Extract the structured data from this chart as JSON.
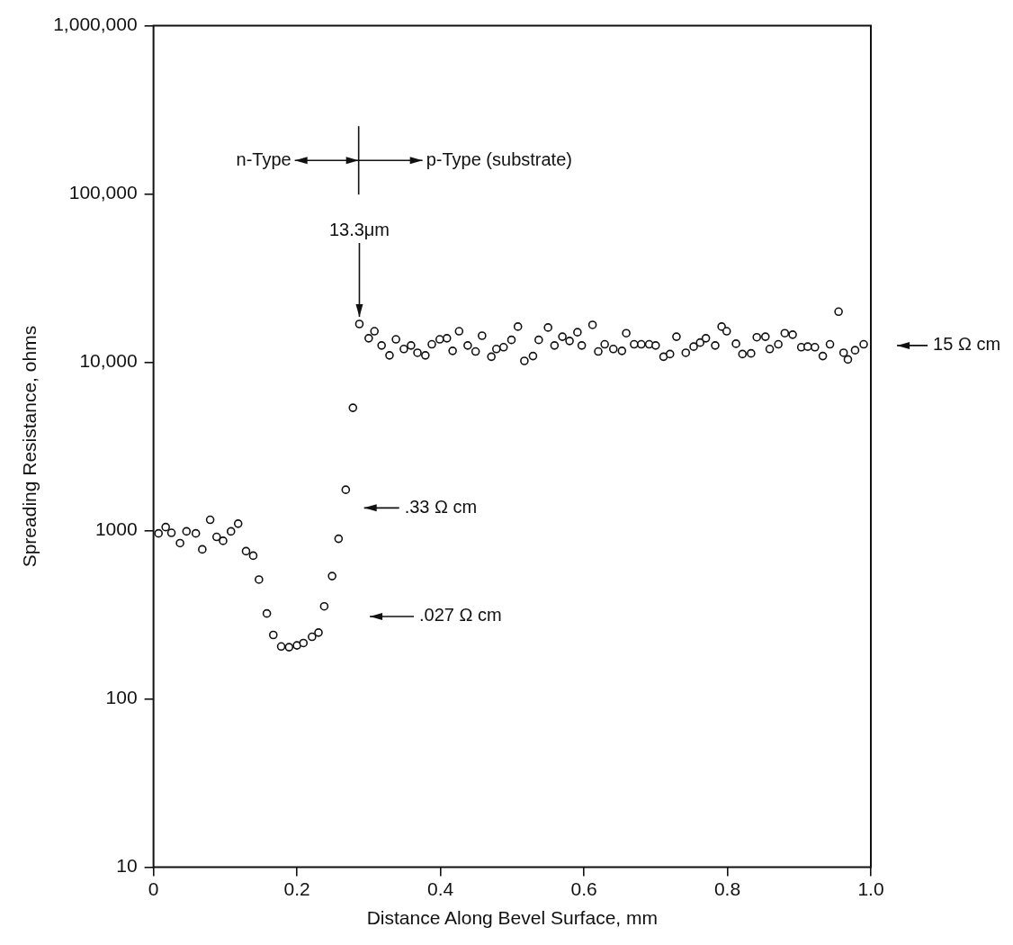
{
  "chart_data": {
    "type": "scatter",
    "xlabel": "Distance Along Bevel Surface, mm",
    "ylabel": "Spreading Resistance, ohms",
    "xlim": [
      0,
      1
    ],
    "xticks": [
      0,
      0.2,
      0.4,
      0.6,
      0.8,
      {
        "value": 1,
        "label": "1.0"
      }
    ],
    "ylim": [
      10,
      1000000
    ],
    "yticks": [
      {
        "value": 10,
        "label": "10"
      },
      {
        "value": 100,
        "label": "100"
      },
      {
        "value": 1000,
        "label": "1000"
      },
      {
        "value": 10000,
        "label": "10,000"
      },
      {
        "value": 100000,
        "label": "100,000"
      },
      {
        "value": 1000000,
        "label": "1,000,000"
      }
    ],
    "log": "y",
    "grid": false,
    "legend": false,
    "marker": "circle",
    "x": [
      0.007,
      0.017,
      0.025,
      0.037,
      0.046,
      0.059,
      0.068,
      0.079,
      0.088,
      0.097,
      0.108,
      0.118,
      0.129,
      0.139,
      0.147,
      0.158,
      0.167,
      0.178,
      0.189,
      0.2,
      0.209,
      0.221,
      0.23,
      0.238,
      0.249,
      0.258,
      0.268,
      0.278,
      0.287,
      0.3,
      0.308,
      0.318,
      0.329,
      0.338,
      0.349,
      0.359,
      0.368,
      0.379,
      0.388,
      0.399,
      0.409,
      0.417,
      0.426,
      0.438,
      0.449,
      0.458,
      0.471,
      0.478,
      0.488,
      0.499,
      0.508,
      0.517,
      0.529,
      0.537,
      0.55,
      0.559,
      0.57,
      0.58,
      0.591,
      0.597,
      0.612,
      0.62,
      0.629,
      0.641,
      0.653,
      0.659,
      0.67,
      0.68,
      0.691,
      0.7,
      0.711,
      0.72,
      0.729,
      0.742,
      0.753,
      0.762,
      0.77,
      0.783,
      0.792,
      0.799,
      0.812,
      0.821,
      0.833,
      0.841,
      0.853,
      0.859,
      0.871,
      0.88,
      0.891,
      0.903,
      0.912,
      0.922,
      0.933,
      0.943,
      0.955,
      0.962,
      0.968,
      0.978,
      0.99
    ],
    "series": [
      {
        "color": "#111111",
        "values": [
          963,
          1050,
          970,
          843,
          990,
          963,
          774,
          1160,
          918,
          870,
          990,
          1100,
          755,
          710,
          512,
          322,
          240,
          205,
          203,
          208,
          215,
          234,
          248,
          355,
          537,
          895,
          1750,
          5370,
          16900,
          13900,
          15300,
          12600,
          11000,
          13700,
          12000,
          12600,
          11400,
          11000,
          12800,
          13700,
          13900,
          11700,
          15300,
          12600,
          11600,
          14400,
          10800,
          12000,
          12300,
          13600,
          16300,
          10200,
          10900,
          13600,
          16100,
          12600,
          14200,
          13400,
          15100,
          12600,
          16700,
          11600,
          12800,
          12000,
          11700,
          14900,
          12800,
          12800,
          12800,
          12600,
          10800,
          11200,
          14200,
          11400,
          12400,
          13100,
          13900,
          12600,
          16300,
          15300,
          12900,
          11200,
          11300,
          14100,
          14200,
          12000,
          12800,
          14900,
          14600,
          12300,
          12400,
          12300,
          10900,
          12800,
          20000,
          11400,
          10400,
          11800,
          12800
        ]
      }
    ],
    "annotations": [
      "n-Type",
      "p-Type (substrate)",
      {
        "text": "13.3μm",
        "x": 0.287,
        "y": 16900
      },
      ".33 Ω cm",
      ".027 Ω cm",
      "15 Ω cm"
    ]
  }
}
